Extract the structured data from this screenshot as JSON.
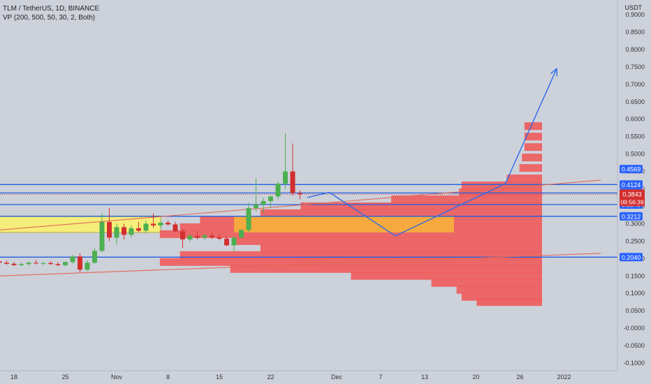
{
  "header": {
    "symbol": "TLM / TetherUS, 1D, BINANCE",
    "indicator": "VP (200, 500, 50, 30, 2, Both)"
  },
  "colors": {
    "background": "#cdd1da",
    "up": "#4caf50",
    "down": "#d32f2f",
    "level_line": "#1f5fe0",
    "trend_line": "#e06a55",
    "vp_bar": "#ef5b5b",
    "value_area": "#f5ad3c",
    "zone_fill": "#f6ee7a",
    "projection": "#2f6be8",
    "price_tag": "#d32f2f",
    "level_tag": "#2962ff"
  },
  "chart_data": {
    "type": "candlestick",
    "title": "TLM / TetherUS, 1D, BINANCE",
    "ylabel": "USDT",
    "ylim": [
      -0.1,
      0.93
    ],
    "y_ticks": [
      "0.9000",
      "0.8500",
      "0.8000",
      "0.7500",
      "0.7000",
      "0.6500",
      "0.6000",
      "0.5500",
      "0.5000",
      "0.4500",
      "0.4000",
      "0.3500",
      "0.3000",
      "0.2500",
      "0.2000",
      "0.1500",
      "0.1000",
      "0.0500",
      "-0.0000",
      "-0.0500",
      "-0.1000"
    ],
    "x_ticks": [
      {
        "label": "18",
        "day": -14
      },
      {
        "label": "25",
        "day": -7
      },
      {
        "label": "Nov",
        "day": 0
      },
      {
        "label": "8",
        "day": 7
      },
      {
        "label": "15",
        "day": 14
      },
      {
        "label": "22",
        "day": 21
      },
      {
        "label": "Dec",
        "day": 30
      },
      {
        "label": "7",
        "day": 36
      },
      {
        "label": "13",
        "day": 42
      },
      {
        "label": "20",
        "day": 49
      },
      {
        "label": "26",
        "day": 55
      },
      {
        "label": "2022",
        "day": 61
      }
    ],
    "candles": [
      {
        "day": -16,
        "o": 0.192,
        "h": 0.198,
        "l": 0.186,
        "c": 0.188
      },
      {
        "day": -15,
        "o": 0.188,
        "h": 0.194,
        "l": 0.182,
        "c": 0.185
      },
      {
        "day": -14,
        "o": 0.185,
        "h": 0.19,
        "l": 0.179,
        "c": 0.181
      },
      {
        "day": -13,
        "o": 0.181,
        "h": 0.188,
        "l": 0.178,
        "c": 0.184
      },
      {
        "day": -12,
        "o": 0.184,
        "h": 0.192,
        "l": 0.18,
        "c": 0.188
      },
      {
        "day": -11,
        "o": 0.188,
        "h": 0.196,
        "l": 0.183,
        "c": 0.186
      },
      {
        "day": -10,
        "o": 0.186,
        "h": 0.19,
        "l": 0.18,
        "c": 0.187
      },
      {
        "day": -9,
        "o": 0.187,
        "h": 0.193,
        "l": 0.182,
        "c": 0.184
      },
      {
        "day": -8,
        "o": 0.184,
        "h": 0.19,
        "l": 0.178,
        "c": 0.181
      },
      {
        "day": -7,
        "o": 0.181,
        "h": 0.192,
        "l": 0.178,
        "c": 0.19
      },
      {
        "day": -6,
        "o": 0.19,
        "h": 0.21,
        "l": 0.185,
        "c": 0.206
      },
      {
        "day": -5,
        "o": 0.206,
        "h": 0.215,
        "l": 0.16,
        "c": 0.168
      },
      {
        "day": -4,
        "o": 0.168,
        "h": 0.195,
        "l": 0.163,
        "c": 0.188
      },
      {
        "day": -3,
        "o": 0.188,
        "h": 0.23,
        "l": 0.185,
        "c": 0.222
      },
      {
        "day": -2,
        "o": 0.222,
        "h": 0.33,
        "l": 0.218,
        "c": 0.305
      },
      {
        "day": -1,
        "o": 0.305,
        "h": 0.345,
        "l": 0.25,
        "c": 0.26
      },
      {
        "day": 0,
        "o": 0.26,
        "h": 0.3,
        "l": 0.24,
        "c": 0.29
      },
      {
        "day": 1,
        "o": 0.29,
        "h": 0.3,
        "l": 0.255,
        "c": 0.268
      },
      {
        "day": 2,
        "o": 0.268,
        "h": 0.295,
        "l": 0.26,
        "c": 0.287
      },
      {
        "day": 3,
        "o": 0.287,
        "h": 0.305,
        "l": 0.275,
        "c": 0.28
      },
      {
        "day": 4,
        "o": 0.28,
        "h": 0.31,
        "l": 0.272,
        "c": 0.3
      },
      {
        "day": 5,
        "o": 0.3,
        "h": 0.33,
        "l": 0.288,
        "c": 0.295
      },
      {
        "day": 6,
        "o": 0.295,
        "h": 0.31,
        "l": 0.285,
        "c": 0.303
      },
      {
        "day": 7,
        "o": 0.303,
        "h": 0.31,
        "l": 0.295,
        "c": 0.298
      },
      {
        "day": 8,
        "o": 0.298,
        "h": 0.305,
        "l": 0.275,
        "c": 0.278
      },
      {
        "day": 9,
        "o": 0.278,
        "h": 0.285,
        "l": 0.23,
        "c": 0.255
      },
      {
        "day": 10,
        "o": 0.255,
        "h": 0.272,
        "l": 0.248,
        "c": 0.265
      },
      {
        "day": 11,
        "o": 0.265,
        "h": 0.278,
        "l": 0.255,
        "c": 0.26
      },
      {
        "day": 12,
        "o": 0.26,
        "h": 0.272,
        "l": 0.252,
        "c": 0.266
      },
      {
        "day": 13,
        "o": 0.266,
        "h": 0.275,
        "l": 0.256,
        "c": 0.261
      },
      {
        "day": 14,
        "o": 0.261,
        "h": 0.27,
        "l": 0.252,
        "c": 0.257
      },
      {
        "day": 15,
        "o": 0.257,
        "h": 0.265,
        "l": 0.235,
        "c": 0.238
      },
      {
        "day": 16,
        "o": 0.238,
        "h": 0.265,
        "l": 0.22,
        "c": 0.26
      },
      {
        "day": 17,
        "o": 0.26,
        "h": 0.285,
        "l": 0.258,
        "c": 0.282
      },
      {
        "day": 18,
        "o": 0.282,
        "h": 0.36,
        "l": 0.276,
        "c": 0.345
      },
      {
        "day": 19,
        "o": 0.345,
        "h": 0.43,
        "l": 0.335,
        "c": 0.355
      },
      {
        "day": 20,
        "o": 0.355,
        "h": 0.375,
        "l": 0.33,
        "c": 0.365
      },
      {
        "day": 21,
        "o": 0.365,
        "h": 0.38,
        "l": 0.345,
        "c": 0.378
      },
      {
        "day": 22,
        "o": 0.378,
        "h": 0.42,
        "l": 0.37,
        "c": 0.415
      },
      {
        "day": 23,
        "o": 0.415,
        "h": 0.56,
        "l": 0.4,
        "c": 0.45
      },
      {
        "day": 24,
        "o": 0.45,
        "h": 0.53,
        "l": 0.38,
        "c": 0.388
      },
      {
        "day": 25,
        "o": 0.388,
        "h": 0.395,
        "l": 0.37,
        "c": 0.3843
      }
    ],
    "levels": [
      {
        "price": 0.4124,
        "label": "0.4124"
      },
      {
        "price": 0.3883,
        "label": "0.3883"
      },
      {
        "price": 0.3549,
        "label": "0.3549"
      },
      {
        "price": 0.3212,
        "label": "0.3212"
      },
      {
        "price": 0.204,
        "label": "0.2040"
      }
    ],
    "extra_tags": [
      {
        "price": 0.4569,
        "label": "0.4569"
      },
      {
        "price": 0.3883,
        "label": "0.3883"
      }
    ],
    "last_price": {
      "price": 0.3843,
      "label": "0.3843",
      "countdown": "09:56:39"
    },
    "zone": {
      "from_day": -16,
      "to_day": 6,
      "low": 0.275,
      "high": 0.322
    },
    "value_area": {
      "low": 0.275,
      "high": 0.322,
      "to_day": 46
    },
    "trend_lines": [
      {
        "from": {
          "day": -16,
          "price": 0.15
        },
        "to": {
          "day": 66,
          "price": 0.215
        }
      },
      {
        "from": {
          "day": -16,
          "price": 0.282
        },
        "to": {
          "day": 66,
          "price": 0.425
        }
      }
    ],
    "projection_path": [
      {
        "day": 26,
        "price": 0.375
      },
      {
        "day": 29,
        "price": 0.39
      },
      {
        "day": 38,
        "price": 0.265
      },
      {
        "day": 53,
        "price": 0.415
      },
      {
        "day": 60,
        "price": 0.745
      }
    ],
    "volume_profile": {
      "right_day": 58,
      "levels": [
        {
          "price": 0.58,
          "width": 0.035
        },
        {
          "price": 0.55,
          "width": 0.035
        },
        {
          "price": 0.52,
          "width": 0.035
        },
        {
          "price": 0.49,
          "width": 0.04
        },
        {
          "price": 0.46,
          "width": 0.045
        },
        {
          "price": 0.43,
          "width": 0.07
        },
        {
          "price": 0.41,
          "width": 0.16
        },
        {
          "price": 0.39,
          "width": 0.165
        },
        {
          "price": 0.37,
          "width": 0.3
        },
        {
          "price": 0.35,
          "width": 0.48
        },
        {
          "price": 0.33,
          "width": 0.56
        },
        {
          "price": 0.31,
          "width": 0.68
        },
        {
          "price": 0.29,
          "width": 0.72
        },
        {
          "price": 0.27,
          "width": 0.76
        },
        {
          "price": 0.25,
          "width": 0.61
        },
        {
          "price": 0.23,
          "width": 0.56
        },
        {
          "price": 0.21,
          "width": 0.72
        },
        {
          "price": 0.19,
          "width": 0.76
        },
        {
          "price": 0.17,
          "width": 0.62
        },
        {
          "price": 0.15,
          "width": 0.38
        },
        {
          "price": 0.13,
          "width": 0.22
        },
        {
          "price": 0.11,
          "width": 0.17
        },
        {
          "price": 0.09,
          "width": 0.16
        },
        {
          "price": 0.075,
          "width": 0.13
        }
      ]
    }
  }
}
